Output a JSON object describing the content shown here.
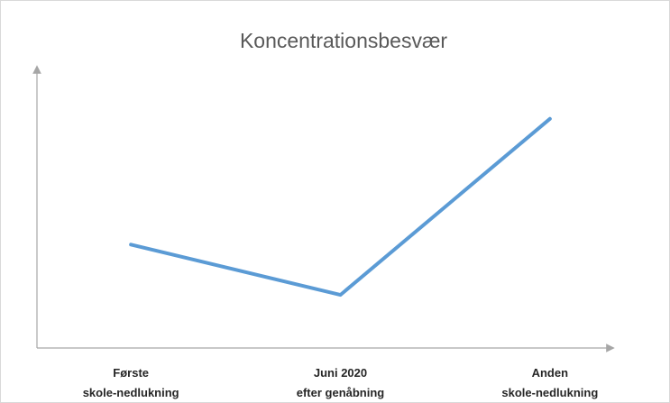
{
  "chart_data": {
    "type": "line",
    "title": "Koncentrationsbesvær",
    "categories": [
      "Første\nskole-nedlukning",
      "Juni 2020\nefter genåbning",
      "Anden\nskole-nedlukning"
    ],
    "values": [
      37,
      19,
      82
    ],
    "color": "#5b9bd5",
    "ylim": [
      0,
      100
    ]
  }
}
